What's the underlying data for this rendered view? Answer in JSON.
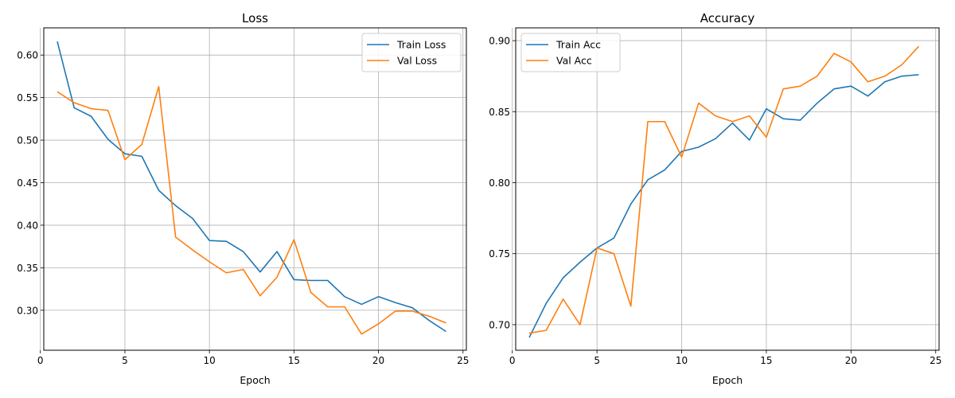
{
  "chart_data": [
    {
      "type": "line",
      "title": "Loss",
      "xlabel": "Epoch",
      "ylabel": "",
      "xlim": [
        0.2,
        25.2
      ],
      "ylim": [
        0.253,
        0.632
      ],
      "xticks": [
        0,
        5,
        10,
        15,
        20,
        25
      ],
      "yticks": [
        0.3,
        0.35,
        0.4,
        0.45,
        0.5,
        0.55,
        0.6
      ],
      "xtick_labels": [
        "0",
        "5",
        "10",
        "15",
        "20",
        "25"
      ],
      "ytick_labels": [
        "0.30",
        "0.35",
        "0.40",
        "0.45",
        "0.50",
        "0.55",
        "0.60"
      ],
      "grid": true,
      "legend_position": "top-right",
      "x": [
        1,
        2,
        3,
        4,
        5,
        6,
        7,
        8,
        9,
        10,
        11,
        12,
        13,
        14,
        15,
        16,
        17,
        18,
        19,
        20,
        21,
        22,
        23,
        24
      ],
      "series": [
        {
          "name": "Train Loss",
          "color": "#1f77b4",
          "values": [
            0.616,
            0.538,
            0.528,
            0.501,
            0.484,
            0.481,
            0.441,
            0.423,
            0.408,
            0.382,
            0.381,
            0.369,
            0.345,
            0.369,
            0.336,
            0.335,
            0.335,
            0.316,
            0.307,
            0.316,
            0.309,
            0.303,
            0.288,
            0.275
          ]
        },
        {
          "name": "Val Loss",
          "color": "#ff7f0e",
          "values": [
            0.557,
            0.544,
            0.537,
            0.535,
            0.477,
            0.495,
            0.563,
            0.386,
            0.371,
            0.357,
            0.344,
            0.348,
            0.317,
            0.339,
            0.383,
            0.321,
            0.304,
            0.304,
            0.272,
            0.284,
            0.299,
            0.299,
            0.293,
            0.285
          ]
        }
      ]
    },
    {
      "type": "line",
      "title": "Accuracy",
      "xlabel": "Epoch",
      "ylabel": "",
      "xlim": [
        0.2,
        25.2
      ],
      "ylim": [
        0.682,
        0.909
      ],
      "xticks": [
        0,
        5,
        10,
        15,
        20,
        25
      ],
      "yticks": [
        0.7,
        0.75,
        0.8,
        0.85,
        0.9
      ],
      "xtick_labels": [
        "0",
        "5",
        "10",
        "15",
        "20",
        "25"
      ],
      "ytick_labels": [
        "0.70",
        "0.75",
        "0.80",
        "0.85",
        "0.90"
      ],
      "grid": true,
      "legend_position": "top-left",
      "x": [
        1,
        2,
        3,
        4,
        5,
        6,
        7,
        8,
        9,
        10,
        11,
        12,
        13,
        14,
        15,
        16,
        17,
        18,
        19,
        20,
        21,
        22,
        23,
        24
      ],
      "series": [
        {
          "name": "Train Acc",
          "color": "#1f77b4",
          "values": [
            0.691,
            0.715,
            0.733,
            0.744,
            0.754,
            0.761,
            0.785,
            0.802,
            0.809,
            0.822,
            0.825,
            0.831,
            0.842,
            0.83,
            0.852,
            0.845,
            0.844,
            0.856,
            0.866,
            0.868,
            0.861,
            0.871,
            0.875,
            0.876
          ]
        },
        {
          "name": "Val Acc",
          "color": "#ff7f0e",
          "values": [
            0.694,
            0.696,
            0.718,
            0.7,
            0.754,
            0.75,
            0.713,
            0.843,
            0.843,
            0.818,
            0.856,
            0.847,
            0.843,
            0.847,
            0.832,
            0.866,
            0.868,
            0.875,
            0.891,
            0.885,
            0.871,
            0.875,
            0.883,
            0.896
          ]
        }
      ]
    }
  ]
}
